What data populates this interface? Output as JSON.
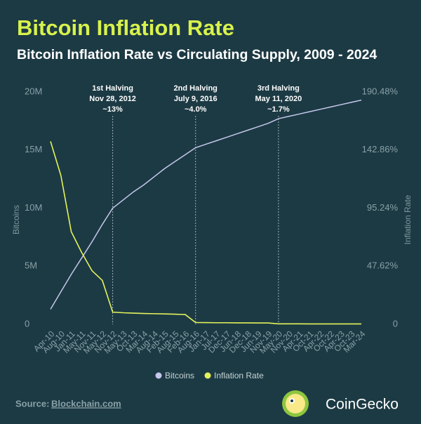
{
  "chart_data": {
    "type": "line",
    "title": "Bitcoin Inflation Rate",
    "subtitle": "Bitcoin Inflation Rate vs Circulating Supply, 2009 - 2024",
    "ylabel": "Bitcoins",
    "y2label": "Inflation Rate",
    "categories": [
      "Apr-10",
      "Aug-10",
      "Jan-11",
      "May-11",
      "Nov-11",
      "May-12",
      "Nov-12",
      "May-13",
      "Oct-13",
      "Mar-14",
      "Aug-14",
      "Feb-15",
      "Aug-15",
      "Feb-16",
      "Aug-16",
      "Jan-17",
      "Jul-17",
      "Dec-17",
      "Jun-18",
      "Dec-18",
      "Jun-19",
      "Nov-19",
      "May-20",
      "Nov-20",
      "Apr-21",
      "Oct-21",
      "Apr-22",
      "Oct-22",
      "Apr-23",
      "Oct-23",
      "Mar-24"
    ],
    "series": [
      {
        "name": "Bitcoins",
        "color": "#c6c7ec",
        "axis": "y",
        "values": [
          1300000,
          2800000,
          4300000,
          5700000,
          7100000,
          8600000,
          10000000,
          10700000,
          11400000,
          12000000,
          12700000,
          13400000,
          14000000,
          14600000,
          15200000,
          15500000,
          15800000,
          16100000,
          16400000,
          16700000,
          17000000,
          17300000,
          17700000,
          17900000,
          18100000,
          18300000,
          18500000,
          18700000,
          18900000,
          19100000,
          19300000
        ]
      },
      {
        "name": "Inflation Rate",
        "color": "#e3f25a",
        "axis": "y2",
        "values": [
          150,
          122,
          76,
          59,
          44,
          36,
          10,
          9.5,
          9.2,
          8.9,
          8.7,
          8.5,
          8.3,
          8.0,
          1.5,
          1.4,
          1.3,
          1.3,
          1.2,
          1.2,
          1.1,
          1.1,
          0.4,
          0.4,
          0.4,
          0.3,
          0.3,
          0.3,
          0.3,
          0.3,
          0.3
        ]
      }
    ],
    "ylim": [
      0,
      20000000
    ],
    "yticks": [
      0,
      {
        "value": 5000000,
        "label": "5M"
      },
      {
        "value": 10000000,
        "label": "10M"
      },
      {
        "value": 15000000,
        "label": "15M"
      },
      {
        "value": 20000000,
        "label": "20M"
      }
    ],
    "y2lim": [
      0,
      190.48
    ],
    "y2ticks": [
      0,
      {
        "value": 47.62,
        "label": "47.62%"
      },
      {
        "value": 95.24,
        "label": "95.24%"
      },
      {
        "value": 142.86,
        "label": "142.86%"
      },
      {
        "value": 190.48,
        "label": "190.48%"
      }
    ],
    "annotations": [
      {
        "title": "1st Halving",
        "date": "Nov 28, 2012",
        "rate": "~13%"
      },
      {
        "title": "2nd Halving",
        "date": "July 9, 2016",
        "rate": "~4.0%"
      },
      {
        "title": "3rd Halving",
        "date": "May 11, 2020",
        "rate": "~1.7%"
      }
    ],
    "legend": "bottom",
    "source_label": "Source:",
    "source": "Blockchain.com",
    "brand": "CoinGecko"
  }
}
